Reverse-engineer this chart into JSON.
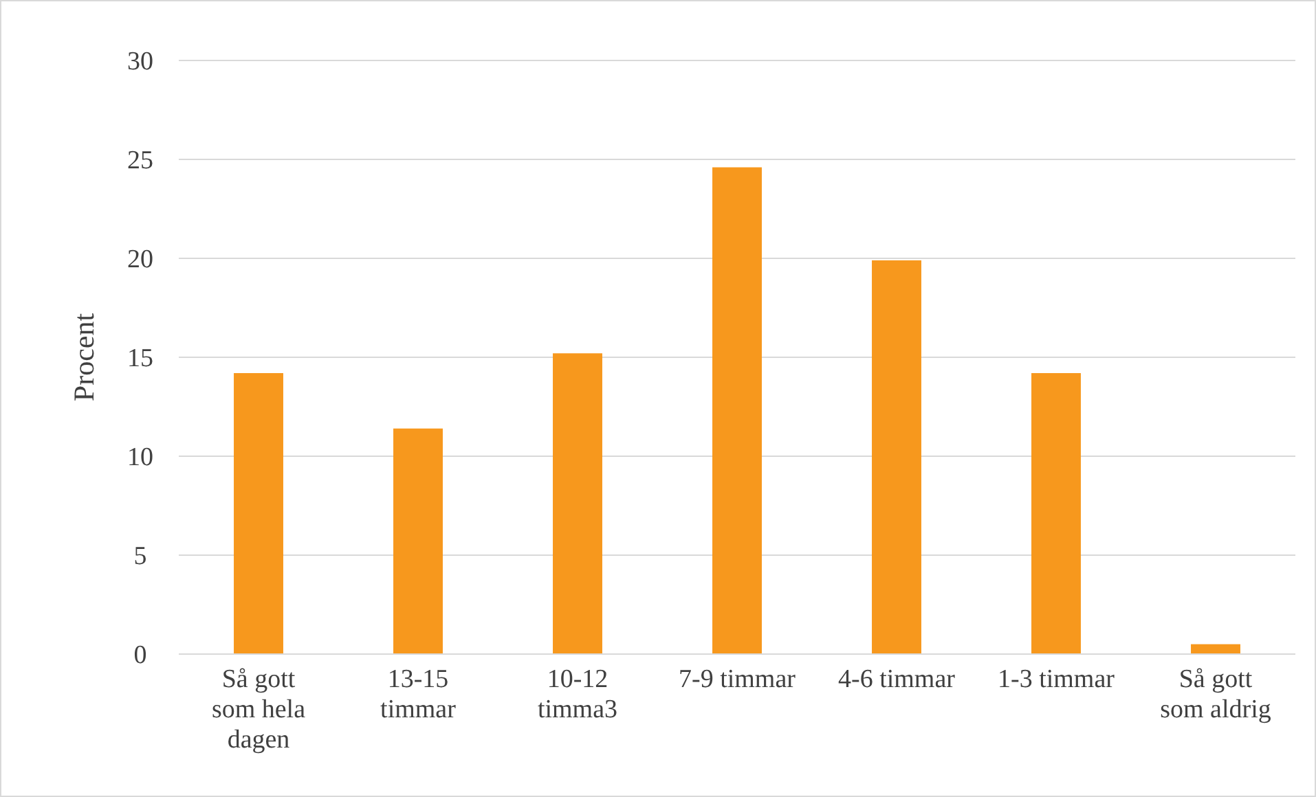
{
  "chart_data": {
    "type": "bar",
    "ylabel": "Procent",
    "categories": [
      "Så gott som hela dagen",
      "13-15 timmar",
      "10-12 timma3",
      "7-9 timmar",
      "4-6 timmar",
      "1-3 timmar",
      "Så gott som aldrig"
    ],
    "values": [
      14.2,
      11.4,
      15.2,
      24.6,
      19.9,
      14.2,
      0.5
    ],
    "color": "#f7981d",
    "ylim": [
      0,
      30
    ],
    "yticks": [
      0,
      5,
      10,
      15,
      20,
      25,
      30
    ],
    "grid": "y"
  }
}
